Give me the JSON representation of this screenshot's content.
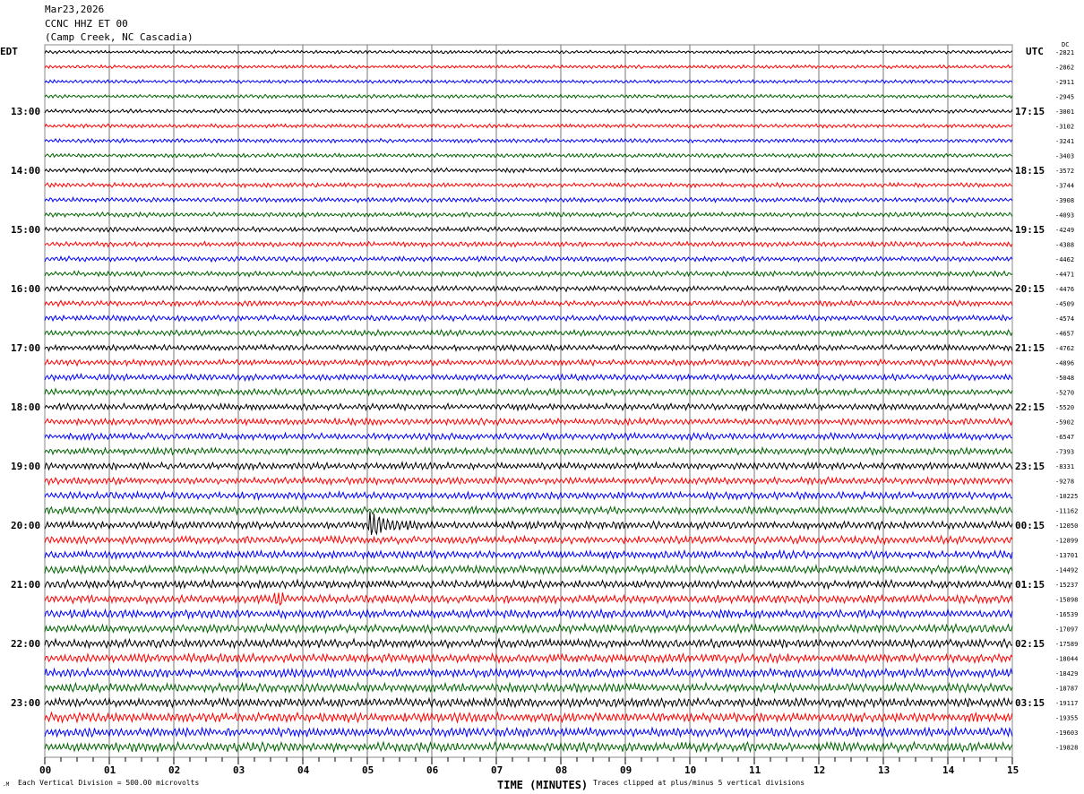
{
  "header": {
    "date": "Mar23,2026",
    "station": "CCNC HHZ ET 00",
    "location": "(Camp Creek, NC Cascadia)"
  },
  "chart_data": {
    "type": "line",
    "title": "",
    "left_axis_label": "EDT",
    "right_axis_label": "UTC",
    "dc_label": "DC",
    "xlabel": "TIME (MINUTES)",
    "xlim": [
      0,
      15
    ],
    "x_ticks": [
      "00",
      "01",
      "02",
      "03",
      "04",
      "05",
      "06",
      "07",
      "08",
      "09",
      "10",
      "11",
      "12",
      "13",
      "14",
      "15"
    ],
    "trace_colors": [
      "#000000",
      "#ff0000",
      "#0000ff",
      "#006400"
    ],
    "left_labels": [
      "",
      "13:00",
      "14:00",
      "15:00",
      "16:00",
      "17:00",
      "18:00",
      "19:00",
      "20:00",
      "21:00",
      "22:00",
      "23:00"
    ],
    "right_labels": [
      "",
      "17:15",
      "18:15",
      "19:15",
      "20:15",
      "21:15",
      "22:15",
      "23:15",
      "00:15",
      "01:15",
      "02:15",
      "03:15"
    ],
    "dc_offsets": [
      "-2821",
      "-2862",
      "-2911",
      "-2945",
      "-3001",
      "-3102",
      "-3241",
      "-3403",
      "-3572",
      "-3744",
      "-3908",
      "-4093",
      "-4249",
      "-4388",
      "-4462",
      "-4471",
      "-4476",
      "-4509",
      "-4574",
      "-4657",
      "-4762",
      "-4896",
      "-5048",
      "-5270",
      "-5520",
      "-5902",
      "-6547",
      "-7393",
      "-8331",
      "-9278",
      "-10225",
      "-11162",
      "-12050",
      "-12899",
      "-13701",
      "-14492",
      "-15237",
      "-15898",
      "-16539",
      "-17097",
      "-17589",
      "-18044",
      "-18429",
      "-18787",
      "-19117",
      "-19355",
      "-19603",
      "-19828"
    ],
    "events": [
      {
        "trace_time_edt": "20:00",
        "minute": 5.2
      },
      {
        "trace_time_edt": "21:15",
        "minute": 3.6
      }
    ]
  },
  "footer": {
    "scale_note": "Each Vertical Division =  500.00 microvolts",
    "clip_note": "Traces clipped at plus/minus 5 vertical divisions"
  }
}
